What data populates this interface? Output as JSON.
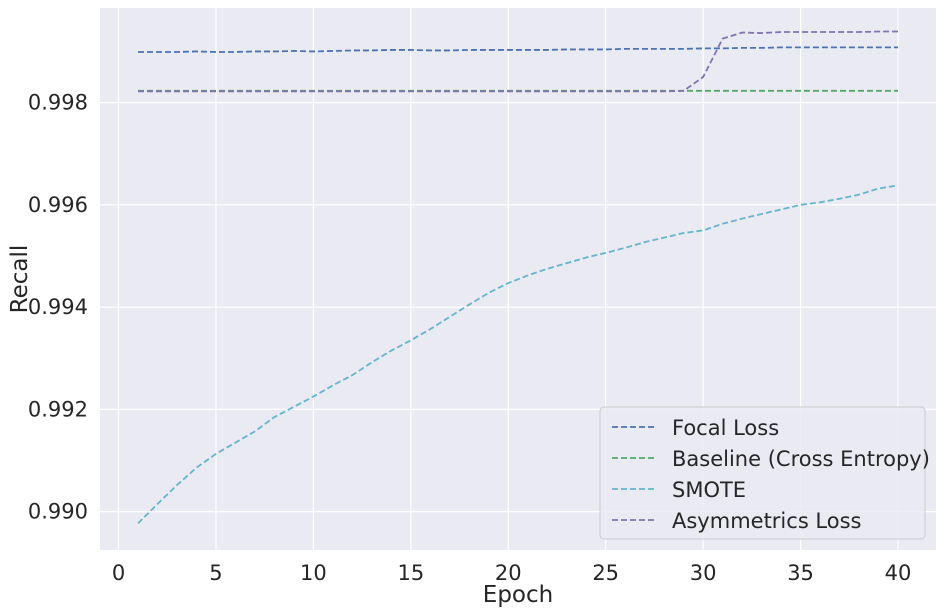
{
  "chart_data": {
    "type": "line",
    "title": "",
    "xlabel": "Epoch",
    "ylabel": "Recall",
    "xlim": [
      -0.95,
      41.95
    ],
    "ylim": [
      0.98925,
      0.99985
    ],
    "xticks": [
      0,
      5,
      10,
      15,
      20,
      25,
      30,
      35,
      40
    ],
    "xtick_labels": [
      "0",
      "5",
      "10",
      "15",
      "20",
      "25",
      "30",
      "35",
      "40"
    ],
    "yticks": [
      0.99,
      0.992,
      0.994,
      0.996,
      0.998
    ],
    "ytick_labels": [
      "0.990",
      "0.992",
      "0.994",
      "0.996",
      "0.998"
    ],
    "grid": true,
    "legend_position": "bottom-right",
    "line_style": "dashed",
    "x": [
      1,
      2,
      3,
      4,
      5,
      6,
      7,
      8,
      9,
      10,
      11,
      12,
      13,
      14,
      15,
      16,
      17,
      18,
      19,
      20,
      21,
      22,
      23,
      24,
      25,
      26,
      27,
      28,
      29,
      30,
      31,
      32,
      33,
      34,
      35,
      36,
      37,
      38,
      39,
      40
    ],
    "series": [
      {
        "name": "Focal Loss",
        "color": "#4c72b0",
        "values": [
          0.99899,
          0.99899,
          0.99899,
          0.999,
          0.99899,
          0.99899,
          0.999,
          0.999,
          0.99901,
          0.999,
          0.99901,
          0.99902,
          0.99902,
          0.99903,
          0.99903,
          0.99902,
          0.99902,
          0.99903,
          0.99903,
          0.99903,
          0.99903,
          0.99903,
          0.99904,
          0.99904,
          0.99904,
          0.99905,
          0.99905,
          0.99905,
          0.99905,
          0.99906,
          0.99906,
          0.99907,
          0.99907,
          0.99908,
          0.99908,
          0.99908,
          0.99908,
          0.99908,
          0.99908,
          0.99908
        ]
      },
      {
        "name": "Baseline (Cross Entropy)",
        "color": "#55a868",
        "values": [
          0.99823,
          0.99823,
          0.99823,
          0.99823,
          0.99823,
          0.99823,
          0.99823,
          0.99823,
          0.99823,
          0.99823,
          0.99823,
          0.99823,
          0.99823,
          0.99823,
          0.99823,
          0.99823,
          0.99823,
          0.99823,
          0.99823,
          0.99823,
          0.99823,
          0.99823,
          0.99823,
          0.99823,
          0.99823,
          0.99823,
          0.99823,
          0.99823,
          0.99823,
          0.99823,
          0.99823,
          0.99823,
          0.99823,
          0.99823,
          0.99823,
          0.99823,
          0.99823,
          0.99823,
          0.99823,
          0.99823
        ]
      },
      {
        "name": "SMOTE",
        "color": "#64b5cd",
        "values": [
          0.98977,
          0.99015,
          0.99052,
          0.99086,
          0.99113,
          0.99135,
          0.99157,
          0.99185,
          0.99205,
          0.99225,
          0.99247,
          0.99267,
          0.99292,
          0.99315,
          0.99335,
          0.99357,
          0.99381,
          0.99405,
          0.99428,
          0.99447,
          0.99462,
          0.99475,
          0.99486,
          0.99497,
          0.99506,
          0.99516,
          0.99527,
          0.99536,
          0.99545,
          0.9955,
          0.99563,
          0.99573,
          0.99582,
          0.99591,
          0.996,
          0.99605,
          0.99612,
          0.9962,
          0.99632,
          0.99638
        ]
      },
      {
        "name": "Asymmetrics Loss",
        "color": "#8172b3",
        "values": [
          0.99822,
          0.99822,
          0.99822,
          0.99822,
          0.99822,
          0.99822,
          0.99822,
          0.99822,
          0.99822,
          0.99822,
          0.99822,
          0.99822,
          0.99822,
          0.99822,
          0.99822,
          0.99822,
          0.99822,
          0.99822,
          0.99822,
          0.99822,
          0.99822,
          0.99822,
          0.99822,
          0.99822,
          0.99822,
          0.99822,
          0.99822,
          0.99822,
          0.99823,
          0.9985,
          0.99925,
          0.99937,
          0.99936,
          0.99938,
          0.99938,
          0.99938,
          0.99938,
          0.99938,
          0.99939,
          0.99939
        ]
      }
    ]
  }
}
